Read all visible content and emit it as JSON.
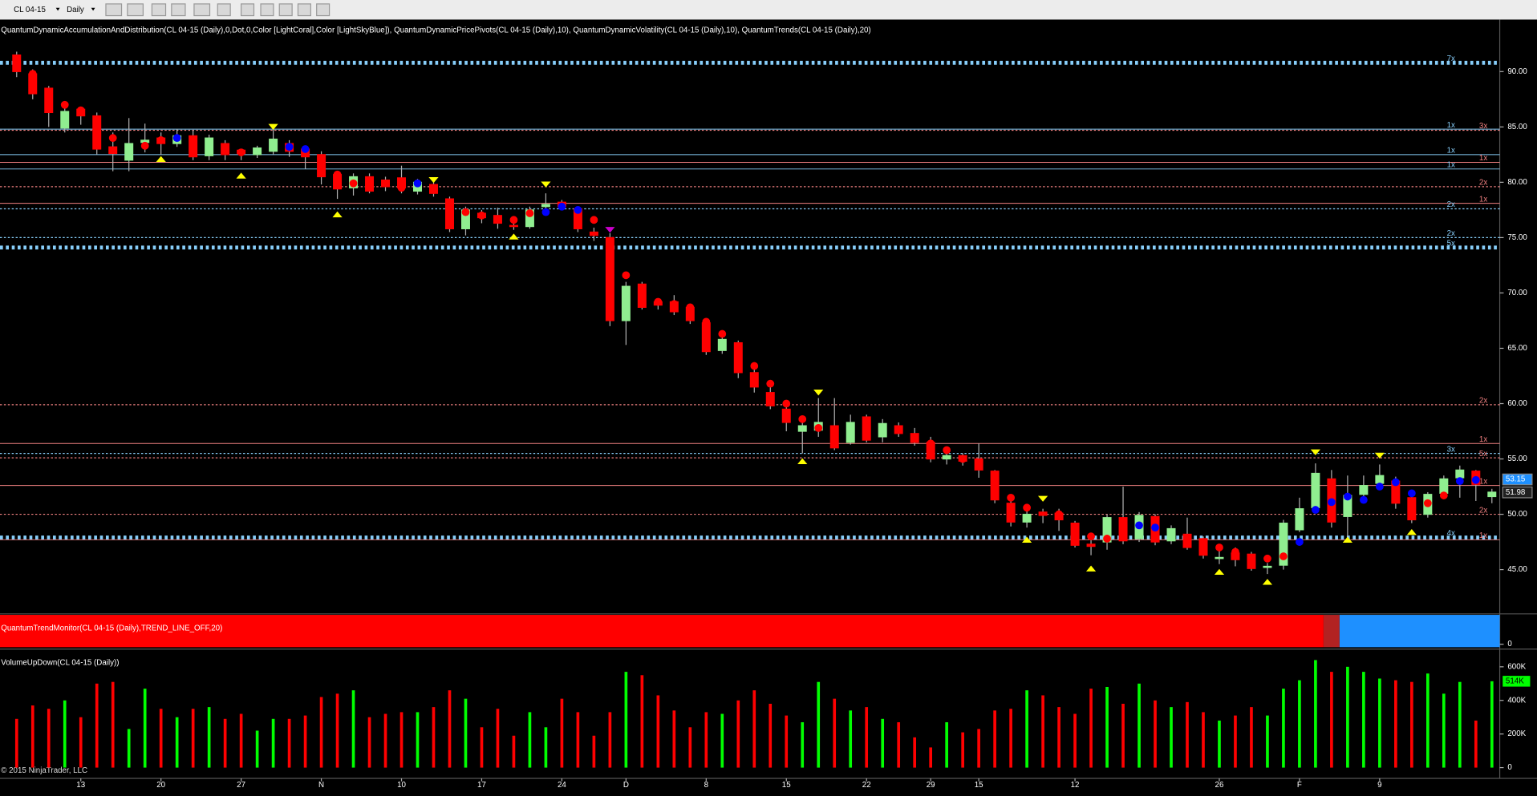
{
  "chart_data": {
    "type": "candlestick",
    "toolbar": {
      "instrument": "CL 04-15",
      "interval": "Daily"
    },
    "title": "QuantumDynamicAccumulationAndDistribution(CL 04-15 (Daily),0,Dot,0,Color [LightCoral],Color [LightSkyBlue]), QuantumDynamicPricePivots(CL 04-15 (Daily),10), QuantumDynamicVolatility(CL 04-15 (Daily),10), QuantumTrends(CL 04-15 (Daily),20)",
    "copyright": "© 2015 NinjaTrader, LLC",
    "categories": [
      null,
      null,
      null,
      null,
      "13",
      null,
      null,
      null,
      null,
      "20",
      null,
      null,
      null,
      null,
      "27",
      null,
      null,
      null,
      null,
      "N",
      null,
      null,
      null,
      null,
      "10",
      null,
      null,
      null,
      null,
      "17",
      null,
      null,
      null,
      null,
      "24",
      null,
      null,
      null,
      "D",
      null,
      null,
      null,
      null,
      "8",
      null,
      null,
      null,
      null,
      "15",
      null,
      null,
      null,
      null,
      "22",
      null,
      null,
      null,
      "29",
      null,
      null,
      "15",
      null,
      null,
      null,
      null,
      null,
      "12",
      null,
      null,
      null,
      null,
      null,
      null,
      null,
      null,
      "26",
      null,
      null,
      null,
      null,
      "F",
      null,
      null,
      null,
      null,
      "9",
      null,
      null,
      null,
      null,
      null,
      null,
      null
    ],
    "open": [
      91.5,
      89.8,
      88.5,
      84.9,
      86.6,
      86.0,
      83.2,
      82.0,
      83.6,
      84.0,
      83.5,
      84.2,
      82.4,
      83.5,
      82.9,
      82.5,
      82.8,
      83.5,
      83.0,
      82.5,
      80.7,
      79.5,
      80.5,
      80.2,
      80.4,
      79.2,
      79.8,
      78.5,
      75.8,
      77.2,
      77.0,
      76.1,
      76.0,
      77.8,
      78.2,
      77.6,
      75.5,
      75.0,
      67.5,
      70.8,
      69.2,
      69.2,
      68.7,
      67.3,
      64.8,
      65.5,
      62.8,
      61.0,
      59.5,
      57.5,
      57.6,
      58.0,
      56.5,
      58.8,
      57.0,
      58.0,
      57.3,
      56.5,
      55.0,
      55.3,
      55.0,
      53.9,
      51.0,
      49.3,
      50.2,
      50.1,
      49.2,
      47.3,
      47.5,
      49.7,
      47.8,
      49.8,
      47.6,
      48.2,
      47.8,
      46.0,
      46.5,
      46.4,
      45.2,
      45.4,
      48.6,
      50.6,
      53.2,
      49.8,
      51.8,
      52.8,
      53.0,
      51.5,
      50.0,
      51.9,
      53.3,
      53.9,
      51.6
    ],
    "high": [
      91.8,
      90.2,
      88.7,
      86.8,
      86.8,
      86.3,
      84.5,
      85.8,
      85.3,
      84.5,
      84.8,
      84.7,
      84.3,
      83.8,
      83.0,
      83.3,
      84.8,
      83.8,
      83.3,
      82.8,
      81.0,
      80.8,
      80.8,
      80.5,
      81.5,
      80.3,
      80.1,
      78.7,
      77.8,
      77.5,
      77.7,
      76.6,
      77.8,
      79.0,
      78.4,
      77.8,
      75.9,
      75.4,
      71.0,
      71.0,
      69.5,
      69.8,
      68.9,
      67.5,
      66.2,
      65.7,
      63.2,
      61.5,
      59.8,
      58.5,
      60.5,
      60.5,
      59.0,
      59.0,
      58.6,
      58.3,
      57.8,
      57.0,
      55.8,
      55.5,
      56.4,
      54.0,
      51.2,
      50.3,
      50.5,
      50.5,
      49.4,
      48.0,
      50.0,
      52.5,
      50.2,
      50.0,
      49.0,
      49.7,
      48.0,
      46.7,
      47.0,
      46.6,
      45.6,
      49.5,
      51.5,
      54.6,
      54.0,
      53.5,
      53.5,
      54.5,
      53.4,
      51.8,
      52.0,
      53.5,
      54.4,
      54.0,
      52.3
    ],
    "low": [
      89.5,
      87.5,
      85.0,
      84.5,
      85.2,
      82.5,
      81.0,
      81.0,
      82.7,
      82.5,
      83.2,
      82.0,
      82.0,
      82.0,
      82.0,
      82.2,
      82.5,
      82.3,
      81.2,
      79.8,
      78.5,
      78.8,
      79.0,
      79.2,
      79.0,
      78.9,
      78.7,
      75.5,
      75.2,
      76.3,
      75.8,
      75.7,
      75.8,
      77.2,
      77.5,
      75.5,
      74.7,
      67.0,
      65.3,
      68.5,
      68.5,
      68.0,
      67.2,
      64.4,
      64.5,
      62.3,
      61.0,
      59.5,
      57.5,
      55.5,
      57.0,
      55.8,
      56.3,
      56.5,
      56.5,
      57.0,
      56.2,
      54.7,
      54.5,
      54.4,
      53.3,
      51.0,
      48.9,
      48.8,
      49.2,
      48.5,
      47.0,
      46.3,
      46.8,
      47.3,
      47.5,
      47.2,
      47.3,
      46.8,
      46.0,
      45.5,
      45.3,
      44.9,
      44.6,
      45.0,
      48.4,
      50.4,
      48.8,
      48.0,
      51.4,
      52.5,
      50.5,
      49.2,
      49.7,
      51.7,
      51.5,
      51.2,
      51.0
    ],
    "close": [
      90.0,
      88.0,
      86.3,
      86.4,
      86.0,
      83.0,
      82.6,
      83.5,
      83.8,
      83.5,
      84.2,
      82.3,
      84.0,
      82.5,
      82.6,
      83.1,
      83.9,
      82.8,
      82.3,
      80.5,
      79.4,
      80.5,
      79.2,
      79.6,
      79.5,
      80.0,
      79.0,
      75.8,
      77.5,
      76.8,
      76.3,
      76.0,
      77.5,
      78.0,
      77.8,
      75.8,
      75.2,
      67.5,
      70.6,
      68.7,
      68.9,
      68.3,
      67.5,
      64.7,
      65.8,
      62.8,
      61.5,
      59.8,
      58.3,
      58.0,
      58.3,
      56.0,
      58.3,
      56.7,
      58.2,
      57.3,
      56.5,
      55.0,
      55.3,
      54.8,
      54.0,
      51.3,
      49.3,
      50.0,
      49.9,
      49.5,
      47.2,
      47.1,
      49.7,
      47.6,
      49.9,
      47.5,
      48.7,
      47.0,
      46.3,
      46.1,
      45.9,
      45.1,
      45.3,
      49.2,
      50.5,
      53.7,
      49.3,
      51.7,
      52.6,
      53.5,
      51.0,
      49.5,
      51.8,
      53.2,
      54.0,
      52.7,
      52.0
    ],
    "up_color": "#90ee90",
    "down_color": "#ff0000",
    "wick_color": "#b0b0b0",
    "ylim": [
      41.0,
      94.7
    ],
    "yticks": [
      {
        "value": 45,
        "label": "45.00"
      },
      {
        "value": 50,
        "label": "50.00"
      },
      {
        "value": 55,
        "label": "55.00"
      },
      {
        "value": 60,
        "label": "60.00"
      },
      {
        "value": 65,
        "label": "65.00"
      },
      {
        "value": 70,
        "label": "70.00"
      },
      {
        "value": 75,
        "label": "75.00"
      },
      {
        "value": 80,
        "label": "80.00"
      },
      {
        "value": 85,
        "label": "85.00"
      },
      {
        "value": 90,
        "label": "90.00"
      }
    ],
    "levels": [
      {
        "value": 90.8,
        "color": "#87cefa",
        "style": "thick",
        "label": "7x"
      },
      {
        "value": 84.7,
        "color": "#f08080",
        "style": "dotted",
        "label": "3x"
      },
      {
        "value": 84.8,
        "color": "#87cefa",
        "style": "solid",
        "label": "1x"
      },
      {
        "value": 82.5,
        "color": "#87cefa",
        "style": "solid",
        "label": "1x"
      },
      {
        "value": 81.8,
        "color": "#f08080",
        "style": "solid",
        "label": "1x"
      },
      {
        "value": 81.2,
        "color": "#87cefa",
        "style": "solid",
        "label": "1x"
      },
      {
        "value": 79.6,
        "color": "#f08080",
        "style": "dotted",
        "label": "2x"
      },
      {
        "value": 78.1,
        "color": "#f08080",
        "style": "solid",
        "label": "1x"
      },
      {
        "value": 77.6,
        "color": "#87cefa",
        "style": "dotted",
        "label": "2x"
      },
      {
        "value": 75.0,
        "color": "#87cefa",
        "style": "dotted",
        "label": "2x"
      },
      {
        "value": 74.1,
        "color": "#87cefa",
        "style": "thick",
        "label": "5x"
      },
      {
        "value": 59.9,
        "color": "#f08080",
        "style": "dotted",
        "label": "2x"
      },
      {
        "value": 56.4,
        "color": "#f08080",
        "style": "solid",
        "label": "1x"
      },
      {
        "value": 55.5,
        "color": "#87cefa",
        "style": "dotted",
        "label": "3x"
      },
      {
        "value": 55.1,
        "color": "#f08080",
        "style": "dotted",
        "label": "5x"
      },
      {
        "value": 52.6,
        "color": "#f08080",
        "style": "solid",
        "label": "1x"
      },
      {
        "value": 50.0,
        "color": "#f08080",
        "style": "dotted",
        "label": "2x"
      },
      {
        "value": 47.9,
        "color": "#87cefa",
        "style": "thick",
        "label": "4x"
      },
      {
        "value": 47.7,
        "color": "#f08080",
        "style": "solid",
        "label": "1x"
      }
    ],
    "dots": {
      "values": [
        null,
        89.8,
        null,
        87.0,
        86.5,
        null,
        84.0,
        null,
        83.3,
        83.8,
        84.0,
        83.8,
        null,
        83.0,
        82.7,
        null,
        null,
        83.2,
        83.0,
        null,
        80.7,
        79.9,
        null,
        null,
        79.5,
        79.9,
        79.3,
        null,
        77.3,
        77.0,
        null,
        76.6,
        77.2,
        77.3,
        77.8,
        77.5,
        76.6,
        null,
        71.6,
        null,
        69.2,
        69.0,
        68.7,
        67.4,
        66.3,
        null,
        63.4,
        61.8,
        60.0,
        58.6,
        57.8,
        null,
        null,
        58.0,
        null,
        null,
        null,
        56.4,
        55.8,
        55.0,
        null,
        null,
        51.5,
        50.6,
        null,
        50.0,
        null,
        48.0,
        47.8,
        null,
        49.0,
        48.8,
        null,
        47.8,
        null,
        47.0,
        46.6,
        45.9,
        46.0,
        46.2,
        47.5,
        50.4,
        51.1,
        51.6,
        51.3,
        52.5,
        52.9,
        51.9,
        51.0,
        51.7,
        53.0,
        53.1,
        null
      ],
      "colors": [
        null,
        "#ff0000",
        null,
        "#ff0000",
        "#ff0000",
        null,
        "#ff0000",
        null,
        "#ff0000",
        "#ff0000",
        "#0000ff",
        "#ff0000",
        null,
        "#ff0000",
        "#ff0000",
        null,
        null,
        "#0000ff",
        "#0000ff",
        null,
        "#ff0000",
        "#ff0000",
        null,
        null,
        "#ff0000",
        "#0000ff",
        "#ff0000",
        null,
        "#ff0000",
        "#ff0000",
        null,
        "#ff0000",
        "#ff0000",
        "#0000ff",
        "#0000ff",
        "#0000ff",
        "#ff0000",
        null,
        "#ff0000",
        null,
        "#ff0000",
        "#ff0000",
        "#ff0000",
        "#ff0000",
        "#ff0000",
        null,
        "#ff0000",
        "#ff0000",
        "#ff0000",
        "#ff0000",
        "#ff0000",
        null,
        null,
        "#ff0000",
        null,
        null,
        null,
        "#ff0000",
        "#ff0000",
        "#ff0000",
        null,
        null,
        "#ff0000",
        "#ff0000",
        null,
        "#ff0000",
        null,
        "#ff0000",
        "#ff0000",
        null,
        "#0000ff",
        "#0000ff",
        null,
        "#ff0000",
        null,
        "#ff0000",
        "#ff0000",
        "#ff0000",
        "#ff0000",
        "#ff0000",
        "#0000ff",
        "#0000ff",
        "#0000ff",
        "#0000ff",
        "#0000ff",
        "#0000ff",
        "#0000ff",
        "#0000ff",
        "#ff0000",
        "#ff0000",
        "#0000ff",
        "#0000ff",
        null
      ]
    },
    "signals": {
      "values": [
        null,
        null,
        null,
        null,
        null,
        null,
        null,
        null,
        null,
        82.1,
        null,
        null,
        null,
        null,
        80.6,
        null,
        85.0,
        null,
        null,
        null,
        77.1,
        null,
        null,
        null,
        null,
        null,
        80.2,
        null,
        null,
        null,
        null,
        75.1,
        null,
        79.8,
        null,
        null,
        null,
        75.7,
        null,
        null,
        null,
        null,
        null,
        null,
        null,
        null,
        null,
        null,
        null,
        54.8,
        61.0,
        null,
        null,
        null,
        null,
        null,
        null,
        null,
        null,
        null,
        null,
        null,
        null,
        47.7,
        51.4,
        null,
        null,
        45.1,
        null,
        null,
        null,
        null,
        null,
        null,
        null,
        44.8,
        null,
        null,
        43.9,
        null,
        null,
        55.6,
        null,
        47.7,
        null,
        55.3,
        null,
        48.4,
        null,
        null,
        null,
        null,
        null
      ],
      "colors": [
        null,
        null,
        null,
        null,
        null,
        null,
        null,
        null,
        null,
        "#ffff00",
        null,
        null,
        null,
        null,
        "#ffff00",
        null,
        "#ffff00",
        null,
        null,
        null,
        "#ffff00",
        null,
        null,
        null,
        null,
        null,
        "#ffff00",
        null,
        null,
        null,
        null,
        "#ffff00",
        null,
        "#ffff00",
        null,
        null,
        null,
        "#cc00cc",
        null,
        null,
        null,
        null,
        null,
        null,
        null,
        null,
        null,
        null,
        null,
        "#ffff00",
        "#ffff00",
        null,
        null,
        null,
        null,
        null,
        null,
        null,
        null,
        null,
        null,
        null,
        null,
        "#ffff00",
        "#ffff00",
        null,
        null,
        "#ffff00",
        null,
        null,
        null,
        null,
        null,
        null,
        null,
        "#ffff00",
        null,
        null,
        "#ffff00",
        null,
        null,
        "#ffff00",
        null,
        "#ffff00",
        null,
        "#ffff00",
        null,
        "#ffff00",
        null,
        null,
        null,
        null,
        null
      ]
    },
    "price_tags": {
      "values": [
        53.15,
        51.98
      ],
      "colors": [
        "#1e90ff",
        "#202020"
      ]
    },
    "trend_monitor": {
      "title": "QuantumTrendMonitor(CL 04-15 (Daily),TREND_LINE_OFF,20)",
      "colors": [
        "#ff0000",
        "#b22222",
        "#1e90ff"
      ],
      "lengths": [
        82,
        1,
        10
      ],
      "yticks": [
        0
      ]
    },
    "volume": {
      "title": "VolumeUpDown(CL 04-15 (Daily))",
      "up_color": "#00ff00",
      "down_color": "#ff0000",
      "values": [
        290000,
        370000,
        350000,
        400000,
        300000,
        500000,
        510000,
        230000,
        470000,
        350000,
        300000,
        350000,
        360000,
        290000,
        320000,
        220000,
        290000,
        290000,
        310000,
        420000,
        440000,
        460000,
        300000,
        320000,
        330000,
        330000,
        360000,
        460000,
        410000,
        240000,
        350000,
        190000,
        330000,
        240000,
        410000,
        330000,
        190000,
        330000,
        570000,
        550000,
        430000,
        340000,
        240000,
        330000,
        320000,
        400000,
        460000,
        380000,
        310000,
        270000,
        510000,
        410000,
        340000,
        360000,
        290000,
        270000,
        180000,
        120000,
        270000,
        210000,
        230000,
        340000,
        350000,
        460000,
        430000,
        360000,
        320000,
        470000,
        480000,
        380000,
        500000,
        400000,
        360000,
        390000,
        330000,
        280000,
        310000,
        360000,
        310000,
        470000,
        520000,
        640000,
        570000,
        600000,
        570000,
        530000,
        520000,
        510000,
        560000,
        440000,
        510000,
        280000,
        514000
      ],
      "ylim": [
        0,
        676000
      ],
      "yticks": [
        0,
        {
          "value": 200000,
          "label": "200K"
        },
        {
          "value": 400000,
          "label": "400K"
        },
        {
          "value": 600000,
          "label": "600K"
        }
      ],
      "last_tag": {
        "value": 514000,
        "label": "514K"
      }
    }
  }
}
